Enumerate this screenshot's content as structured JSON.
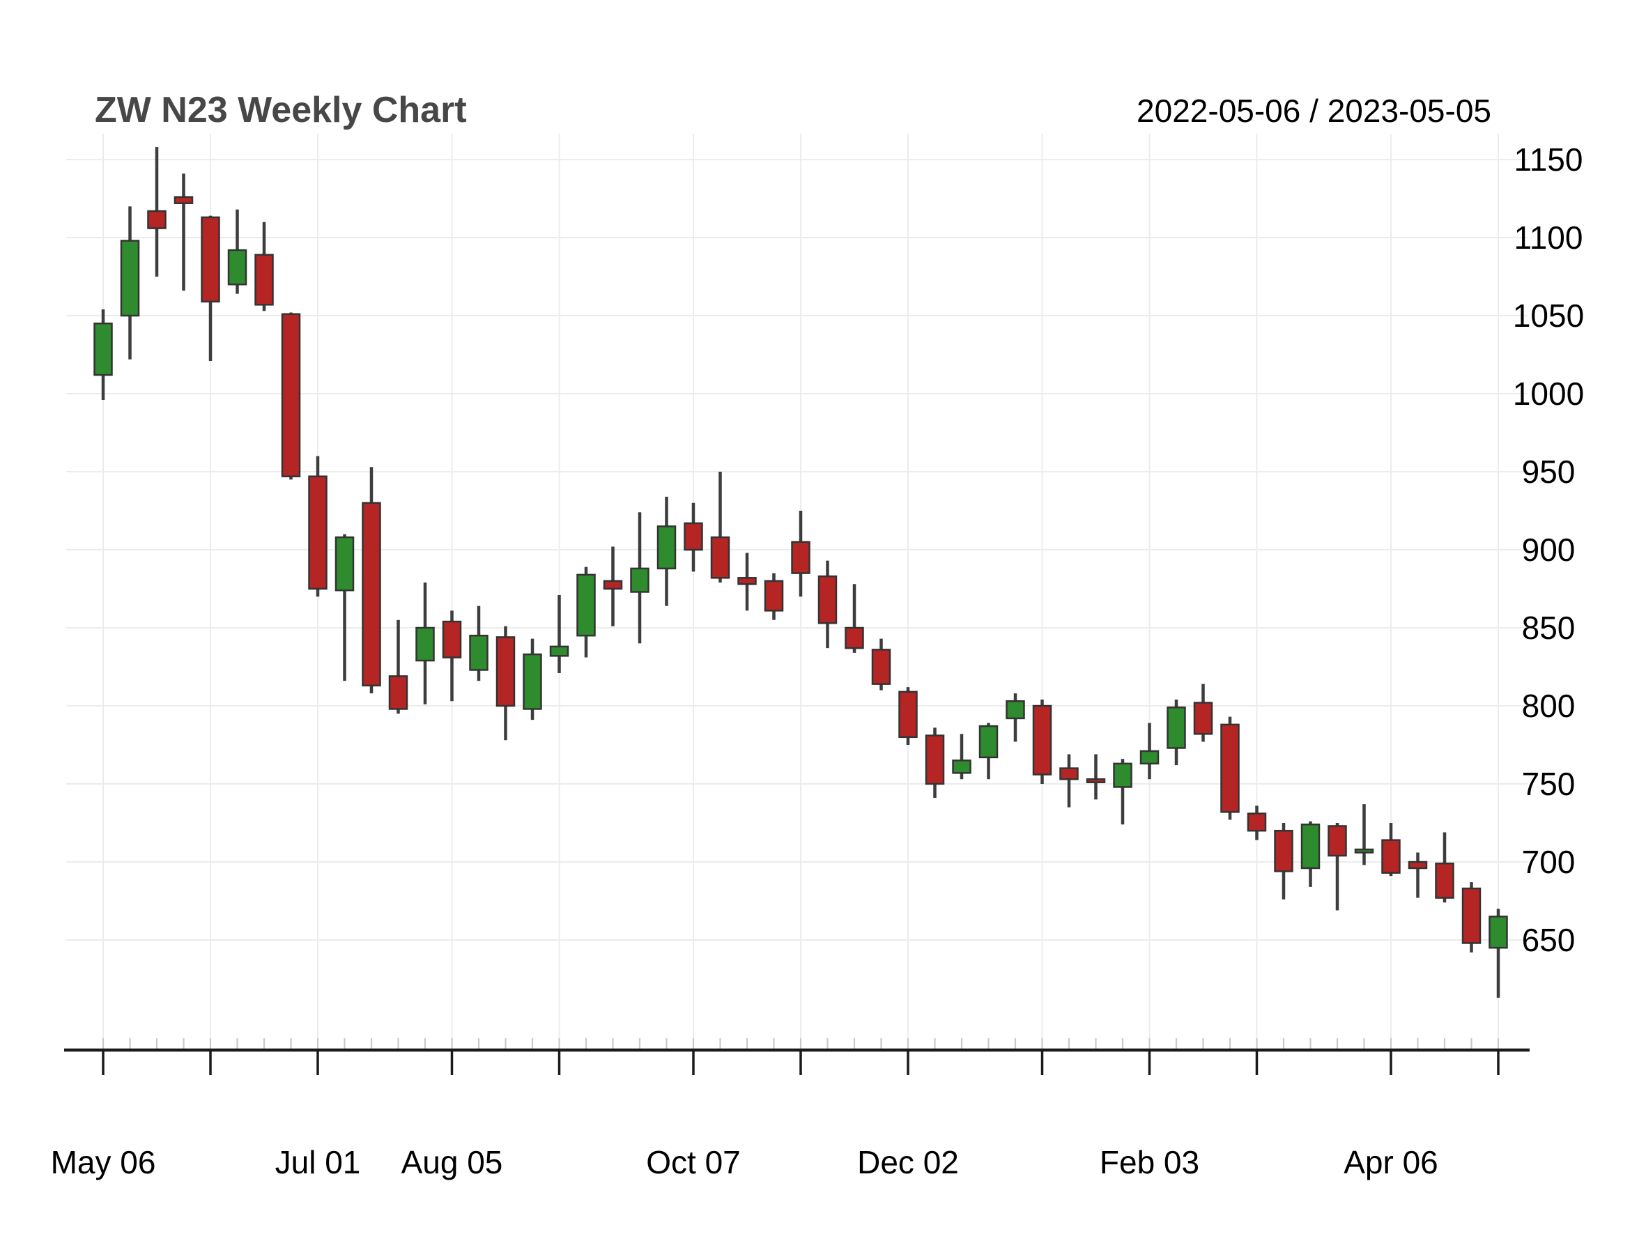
{
  "header": {
    "title": "ZW N23 Weekly Chart",
    "date_range": "2022-05-06 / 2023-05-05"
  },
  "y_axis": {
    "tick_labels": [
      "1150",
      "1100",
      "1050",
      "1000",
      "950",
      "900",
      "850",
      "800",
      "750",
      "700",
      "650"
    ]
  },
  "x_axis": {
    "tick_labels": [
      {
        "label": "May 06",
        "week_index": 0
      },
      {
        "label": "Jul 01",
        "week_index": 8
      },
      {
        "label": "Aug 05",
        "week_index": 13
      },
      {
        "label": "Oct 07",
        "week_index": 22
      },
      {
        "label": "Dec 02",
        "week_index": 30
      },
      {
        "label": "Feb 03",
        "week_index": 39
      },
      {
        "label": "Apr 06",
        "week_index": 48
      }
    ]
  },
  "colors": {
    "background": "#ffffff",
    "gridline": "#ececec",
    "axis_line": "#1a1a1a",
    "weekly_tick": "#c9c9c9",
    "title_text": "#474747",
    "label_text": "#000000",
    "candle_up": "#2e8b2e",
    "candle_down": "#b52524",
    "candle_border": "#333333",
    "wick": "#3d3d3d"
  },
  "chart_data": {
    "type": "candlestick",
    "title": "ZW N23 Weekly Chart",
    "period": "weekly",
    "symbol": "ZW N23",
    "date_range": [
      "2022-05-06",
      "2023-05-05"
    ],
    "ylim": [
      605,
      1165
    ],
    "y_gridlines": [
      650,
      700,
      750,
      800,
      850,
      900,
      950,
      1000,
      1050,
      1100,
      1150
    ],
    "grid": true,
    "legend_position": "none",
    "month_start_week_indices": [
      0,
      4,
      8,
      13,
      17,
      22,
      26,
      30,
      35,
      39,
      43,
      48,
      52
    ],
    "up_color": "#2e8b2e",
    "down_color": "#b52524",
    "series": [
      {
        "date": "2022-05-06",
        "open": 1012,
        "high": 1054,
        "low": 996,
        "close": 1045
      },
      {
        "date": "2022-05-13",
        "open": 1050,
        "high": 1120,
        "low": 1022,
        "close": 1098
      },
      {
        "date": "2022-05-20",
        "open": 1117,
        "high": 1158,
        "low": 1075,
        "close": 1106
      },
      {
        "date": "2022-05-27",
        "open": 1126,
        "high": 1141,
        "low": 1066,
        "close": 1122
      },
      {
        "date": "2022-06-03",
        "open": 1113,
        "high": 1114,
        "low": 1021,
        "close": 1059
      },
      {
        "date": "2022-06-10",
        "open": 1070,
        "high": 1118,
        "low": 1064,
        "close": 1092
      },
      {
        "date": "2022-06-17",
        "open": 1089,
        "high": 1110,
        "low": 1053,
        "close": 1057
      },
      {
        "date": "2022-06-24",
        "open": 1051,
        "high": 1052,
        "low": 945,
        "close": 947
      },
      {
        "date": "2022-07-01",
        "open": 947,
        "high": 960,
        "low": 870,
        "close": 875
      },
      {
        "date": "2022-07-08",
        "open": 874,
        "high": 910,
        "low": 816,
        "close": 908
      },
      {
        "date": "2022-07-15",
        "open": 930,
        "high": 953,
        "low": 808,
        "close": 813
      },
      {
        "date": "2022-07-22",
        "open": 819,
        "high": 855,
        "low": 795,
        "close": 798
      },
      {
        "date": "2022-07-29",
        "open": 829,
        "high": 879,
        "low": 801,
        "close": 850
      },
      {
        "date": "2022-08-05",
        "open": 854,
        "high": 861,
        "low": 803,
        "close": 831
      },
      {
        "date": "2022-08-12",
        "open": 823,
        "high": 864,
        "low": 816,
        "close": 845
      },
      {
        "date": "2022-08-19",
        "open": 844,
        "high": 851,
        "low": 778,
        "close": 800
      },
      {
        "date": "2022-08-26",
        "open": 798,
        "high": 843,
        "low": 791,
        "close": 833
      },
      {
        "date": "2022-09-02",
        "open": 832,
        "high": 871,
        "low": 821,
        "close": 838
      },
      {
        "date": "2022-09-09",
        "open": 845,
        "high": 889,
        "low": 831,
        "close": 884
      },
      {
        "date": "2022-09-16",
        "open": 880,
        "high": 902,
        "low": 851,
        "close": 875
      },
      {
        "date": "2022-09-23",
        "open": 873,
        "high": 924,
        "low": 840,
        "close": 888
      },
      {
        "date": "2022-09-30",
        "open": 888,
        "high": 934,
        "low": 864,
        "close": 915
      },
      {
        "date": "2022-10-07",
        "open": 917,
        "high": 930,
        "low": 886,
        "close": 900
      },
      {
        "date": "2022-10-14",
        "open": 908,
        "high": 950,
        "low": 879,
        "close": 882
      },
      {
        "date": "2022-10-21",
        "open": 882,
        "high": 898,
        "low": 861,
        "close": 878
      },
      {
        "date": "2022-10-28",
        "open": 880,
        "high": 885,
        "low": 855,
        "close": 861
      },
      {
        "date": "2022-11-04",
        "open": 905,
        "high": 925,
        "low": 870,
        "close": 885
      },
      {
        "date": "2022-11-11",
        "open": 883,
        "high": 893,
        "low": 837,
        "close": 853
      },
      {
        "date": "2022-11-18",
        "open": 850,
        "high": 878,
        "low": 834,
        "close": 837
      },
      {
        "date": "2022-11-25",
        "open": 836,
        "high": 843,
        "low": 810,
        "close": 814
      },
      {
        "date": "2022-12-02",
        "open": 809,
        "high": 812,
        "low": 775,
        "close": 780
      },
      {
        "date": "2022-12-09",
        "open": 781,
        "high": 786,
        "low": 741,
        "close": 750
      },
      {
        "date": "2022-12-16",
        "open": 757,
        "high": 782,
        "low": 753,
        "close": 765
      },
      {
        "date": "2022-12-23",
        "open": 767,
        "high": 789,
        "low": 753,
        "close": 787
      },
      {
        "date": "2022-12-30",
        "open": 792,
        "high": 808,
        "low": 777,
        "close": 803
      },
      {
        "date": "2023-01-06",
        "open": 800,
        "high": 804,
        "low": 750,
        "close": 756
      },
      {
        "date": "2023-01-13",
        "open": 760,
        "high": 769,
        "low": 735,
        "close": 753
      },
      {
        "date": "2023-01-20",
        "open": 753,
        "high": 769,
        "low": 740,
        "close": 751
      },
      {
        "date": "2023-01-27",
        "open": 748,
        "high": 766,
        "low": 724,
        "close": 763
      },
      {
        "date": "2023-02-03",
        "open": 763,
        "high": 789,
        "low": 753,
        "close": 771
      },
      {
        "date": "2023-02-10",
        "open": 773,
        "high": 804,
        "low": 762,
        "close": 799
      },
      {
        "date": "2023-02-17",
        "open": 802,
        "high": 814,
        "low": 777,
        "close": 782
      },
      {
        "date": "2023-02-24",
        "open": 788,
        "high": 793,
        "low": 727,
        "close": 732
      },
      {
        "date": "2023-03-03",
        "open": 731,
        "high": 736,
        "low": 714,
        "close": 720
      },
      {
        "date": "2023-03-10",
        "open": 720,
        "high": 725,
        "low": 676,
        "close": 694
      },
      {
        "date": "2023-03-17",
        "open": 696,
        "high": 726,
        "low": 684,
        "close": 724
      },
      {
        "date": "2023-03-24",
        "open": 723,
        "high": 725,
        "low": 669,
        "close": 704
      },
      {
        "date": "2023-03-31",
        "open": 706,
        "high": 737,
        "low": 698,
        "close": 708
      },
      {
        "date": "2023-04-06",
        "open": 714,
        "high": 725,
        "low": 691,
        "close": 693
      },
      {
        "date": "2023-04-14",
        "open": 700,
        "high": 706,
        "low": 677,
        "close": 696
      },
      {
        "date": "2023-04-21",
        "open": 699,
        "high": 719,
        "low": 674,
        "close": 677
      },
      {
        "date": "2023-04-28",
        "open": 683,
        "high": 687,
        "low": 642,
        "close": 648
      },
      {
        "date": "2023-05-05",
        "open": 645,
        "high": 670,
        "low": 613,
        "close": 665
      }
    ]
  }
}
